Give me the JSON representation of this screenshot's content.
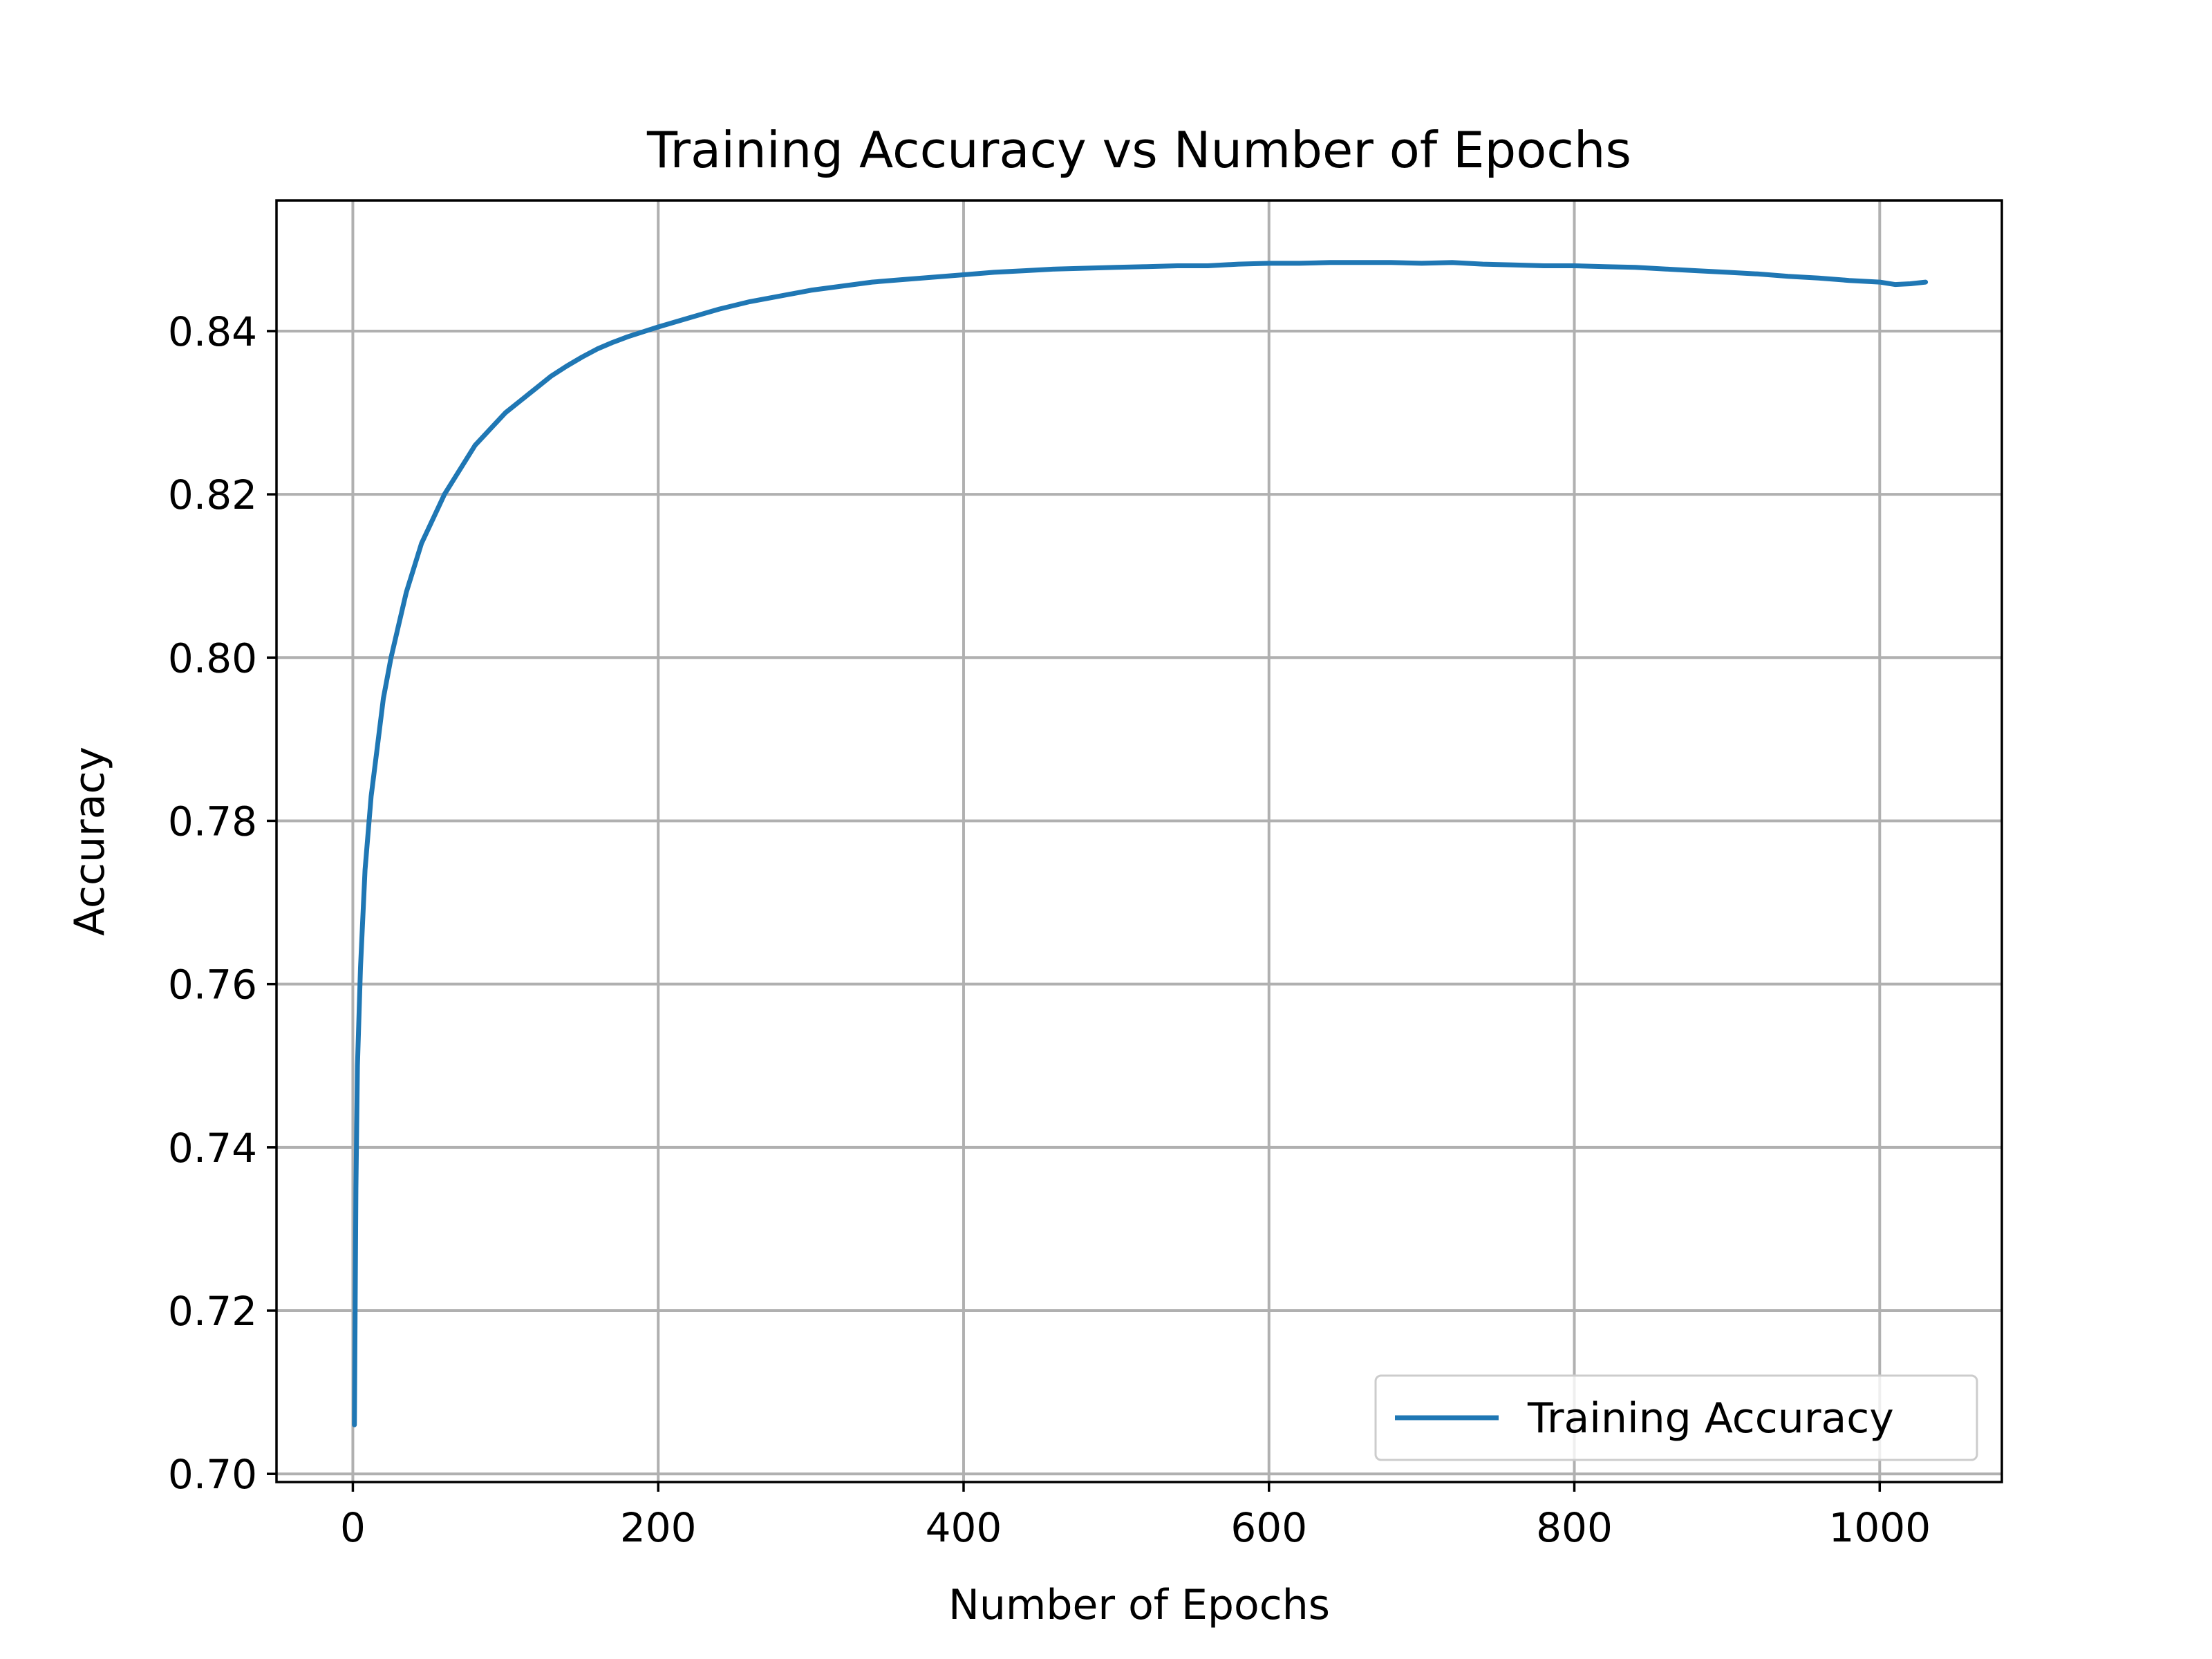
{
  "chart_data": {
    "type": "line",
    "title": "Training Accuracy vs Number of Epochs",
    "xlabel": "Number of Epochs",
    "ylabel": "Accuracy",
    "xlim": [
      -50,
      1080
    ],
    "ylim": [
      0.699,
      0.856
    ],
    "xticks": [
      0,
      200,
      400,
      600,
      800,
      1000
    ],
    "xtick_labels": [
      "0",
      "200",
      "400",
      "600",
      "800",
      "1000"
    ],
    "yticks": [
      0.7,
      0.72,
      0.74,
      0.76,
      0.78,
      0.8,
      0.82,
      0.84
    ],
    "ytick_labels": [
      "0.70",
      "0.72",
      "0.74",
      "0.76",
      "0.78",
      "0.80",
      "0.82",
      "0.84"
    ],
    "grid": true,
    "legend": {
      "position": "lower right",
      "entries": [
        "Training Accuracy"
      ]
    },
    "series": [
      {
        "name": "Training Accuracy",
        "color": "#1f77b4",
        "x": [
          1,
          2,
          3,
          5,
          8,
          12,
          16,
          20,
          25,
          30,
          35,
          40,
          45,
          50,
          60,
          70,
          80,
          90,
          100,
          110,
          120,
          130,
          140,
          150,
          160,
          170,
          180,
          190,
          200,
          220,
          240,
          260,
          280,
          300,
          320,
          340,
          360,
          380,
          400,
          420,
          440,
          460,
          480,
          500,
          520,
          540,
          560,
          580,
          600,
          620,
          640,
          660,
          680,
          700,
          720,
          740,
          760,
          780,
          800,
          820,
          840,
          860,
          880,
          900,
          920,
          940,
          960,
          980,
          1000,
          1010,
          1020,
          1030
        ],
        "y": [
          0.706,
          0.735,
          0.75,
          0.762,
          0.774,
          0.783,
          0.789,
          0.795,
          0.8,
          0.804,
          0.808,
          0.811,
          0.814,
          0.816,
          0.82,
          0.823,
          0.826,
          0.828,
          0.83,
          0.8315,
          0.833,
          0.8345,
          0.8357,
          0.8368,
          0.8378,
          0.8386,
          0.8393,
          0.8399,
          0.8405,
          0.8416,
          0.8427,
          0.8436,
          0.8443,
          0.845,
          0.8455,
          0.846,
          0.8463,
          0.8466,
          0.8469,
          0.8472,
          0.8474,
          0.8476,
          0.8477,
          0.8478,
          0.8479,
          0.848,
          0.848,
          0.8482,
          0.8483,
          0.8483,
          0.8484,
          0.8484,
          0.8484,
          0.8483,
          0.8484,
          0.8482,
          0.8481,
          0.848,
          0.848,
          0.8479,
          0.8478,
          0.8476,
          0.8474,
          0.8472,
          0.847,
          0.8467,
          0.8465,
          0.8462,
          0.846,
          0.8457,
          0.8458,
          0.846
        ]
      }
    ]
  }
}
